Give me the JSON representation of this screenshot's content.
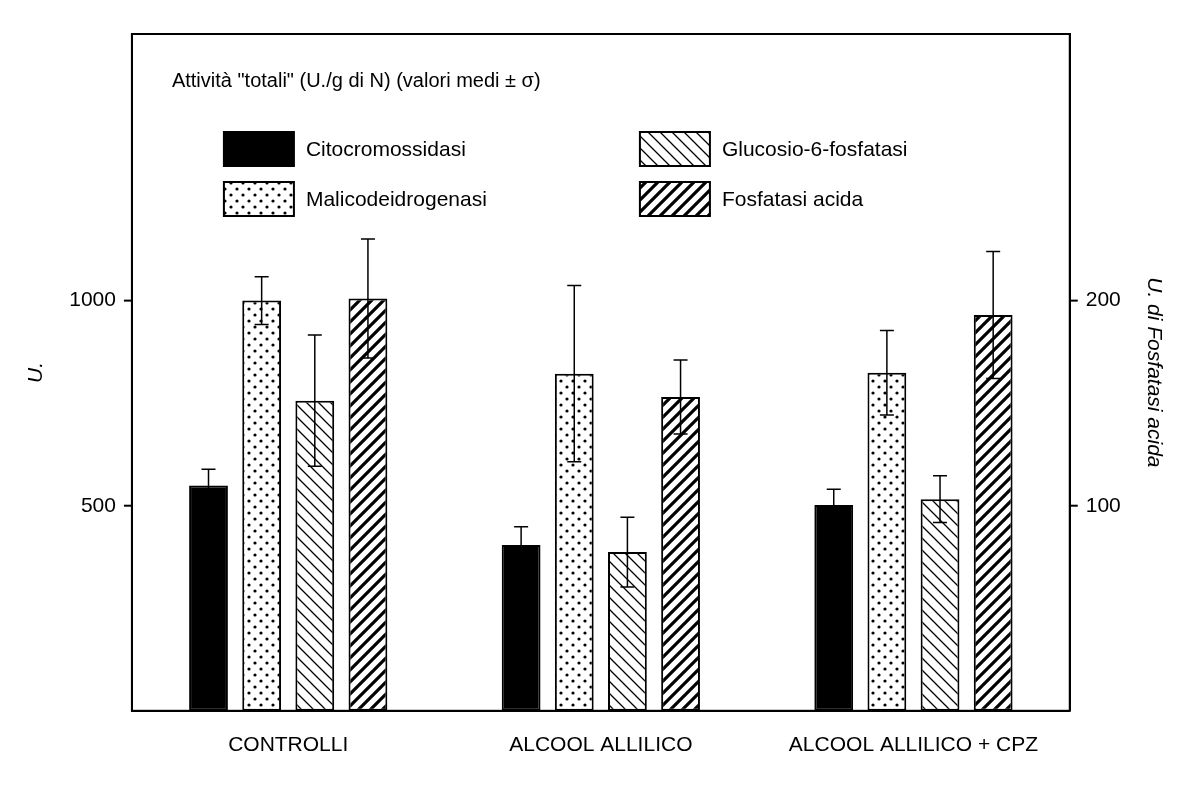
{
  "chart_data": {
    "type": "bar",
    "title": "Attività \"totali\" (U./g di N) (valori medi ± σ)",
    "y_label": "U.",
    "y2_label": "U. di Fosfatasi acida",
    "categories": [
      "CONTROLLI",
      "ALCOOL ALLILICO",
      "ALCOOL ALLILICO + CPZ"
    ],
    "ylim": [
      0,
      1650
    ],
    "yticks": [
      500,
      1000
    ],
    "y2lim": [
      0,
      330
    ],
    "y2ticks": [
      100,
      200
    ],
    "grid": false,
    "legend": "upper left",
    "series": [
      {
        "name": "Citocromossidasi",
        "color": "#000000",
        "values": [
          549,
          404,
          502
        ],
        "errors": [
          40,
          45,
          38
        ]
      },
      {
        "name": "Malicodeidrogenasi",
        "color": "#000000",
        "values": [
          1000,
          822,
          824
        ],
        "errors": [
          58,
          215,
          103
        ]
      },
      {
        "name": "Glucosio-6-fosfatasi",
        "color": "#000000",
        "values": [
          756,
          387,
          516
        ],
        "errors": [
          160,
          85,
          57
        ]
      },
      {
        "name": "Fosfatasi acida",
        "color": "#000000",
        "values": [
          201,
          153,
          193
        ],
        "errors": [
          29,
          18,
          31
        ],
        "axis": "y2"
      }
    ]
  }
}
